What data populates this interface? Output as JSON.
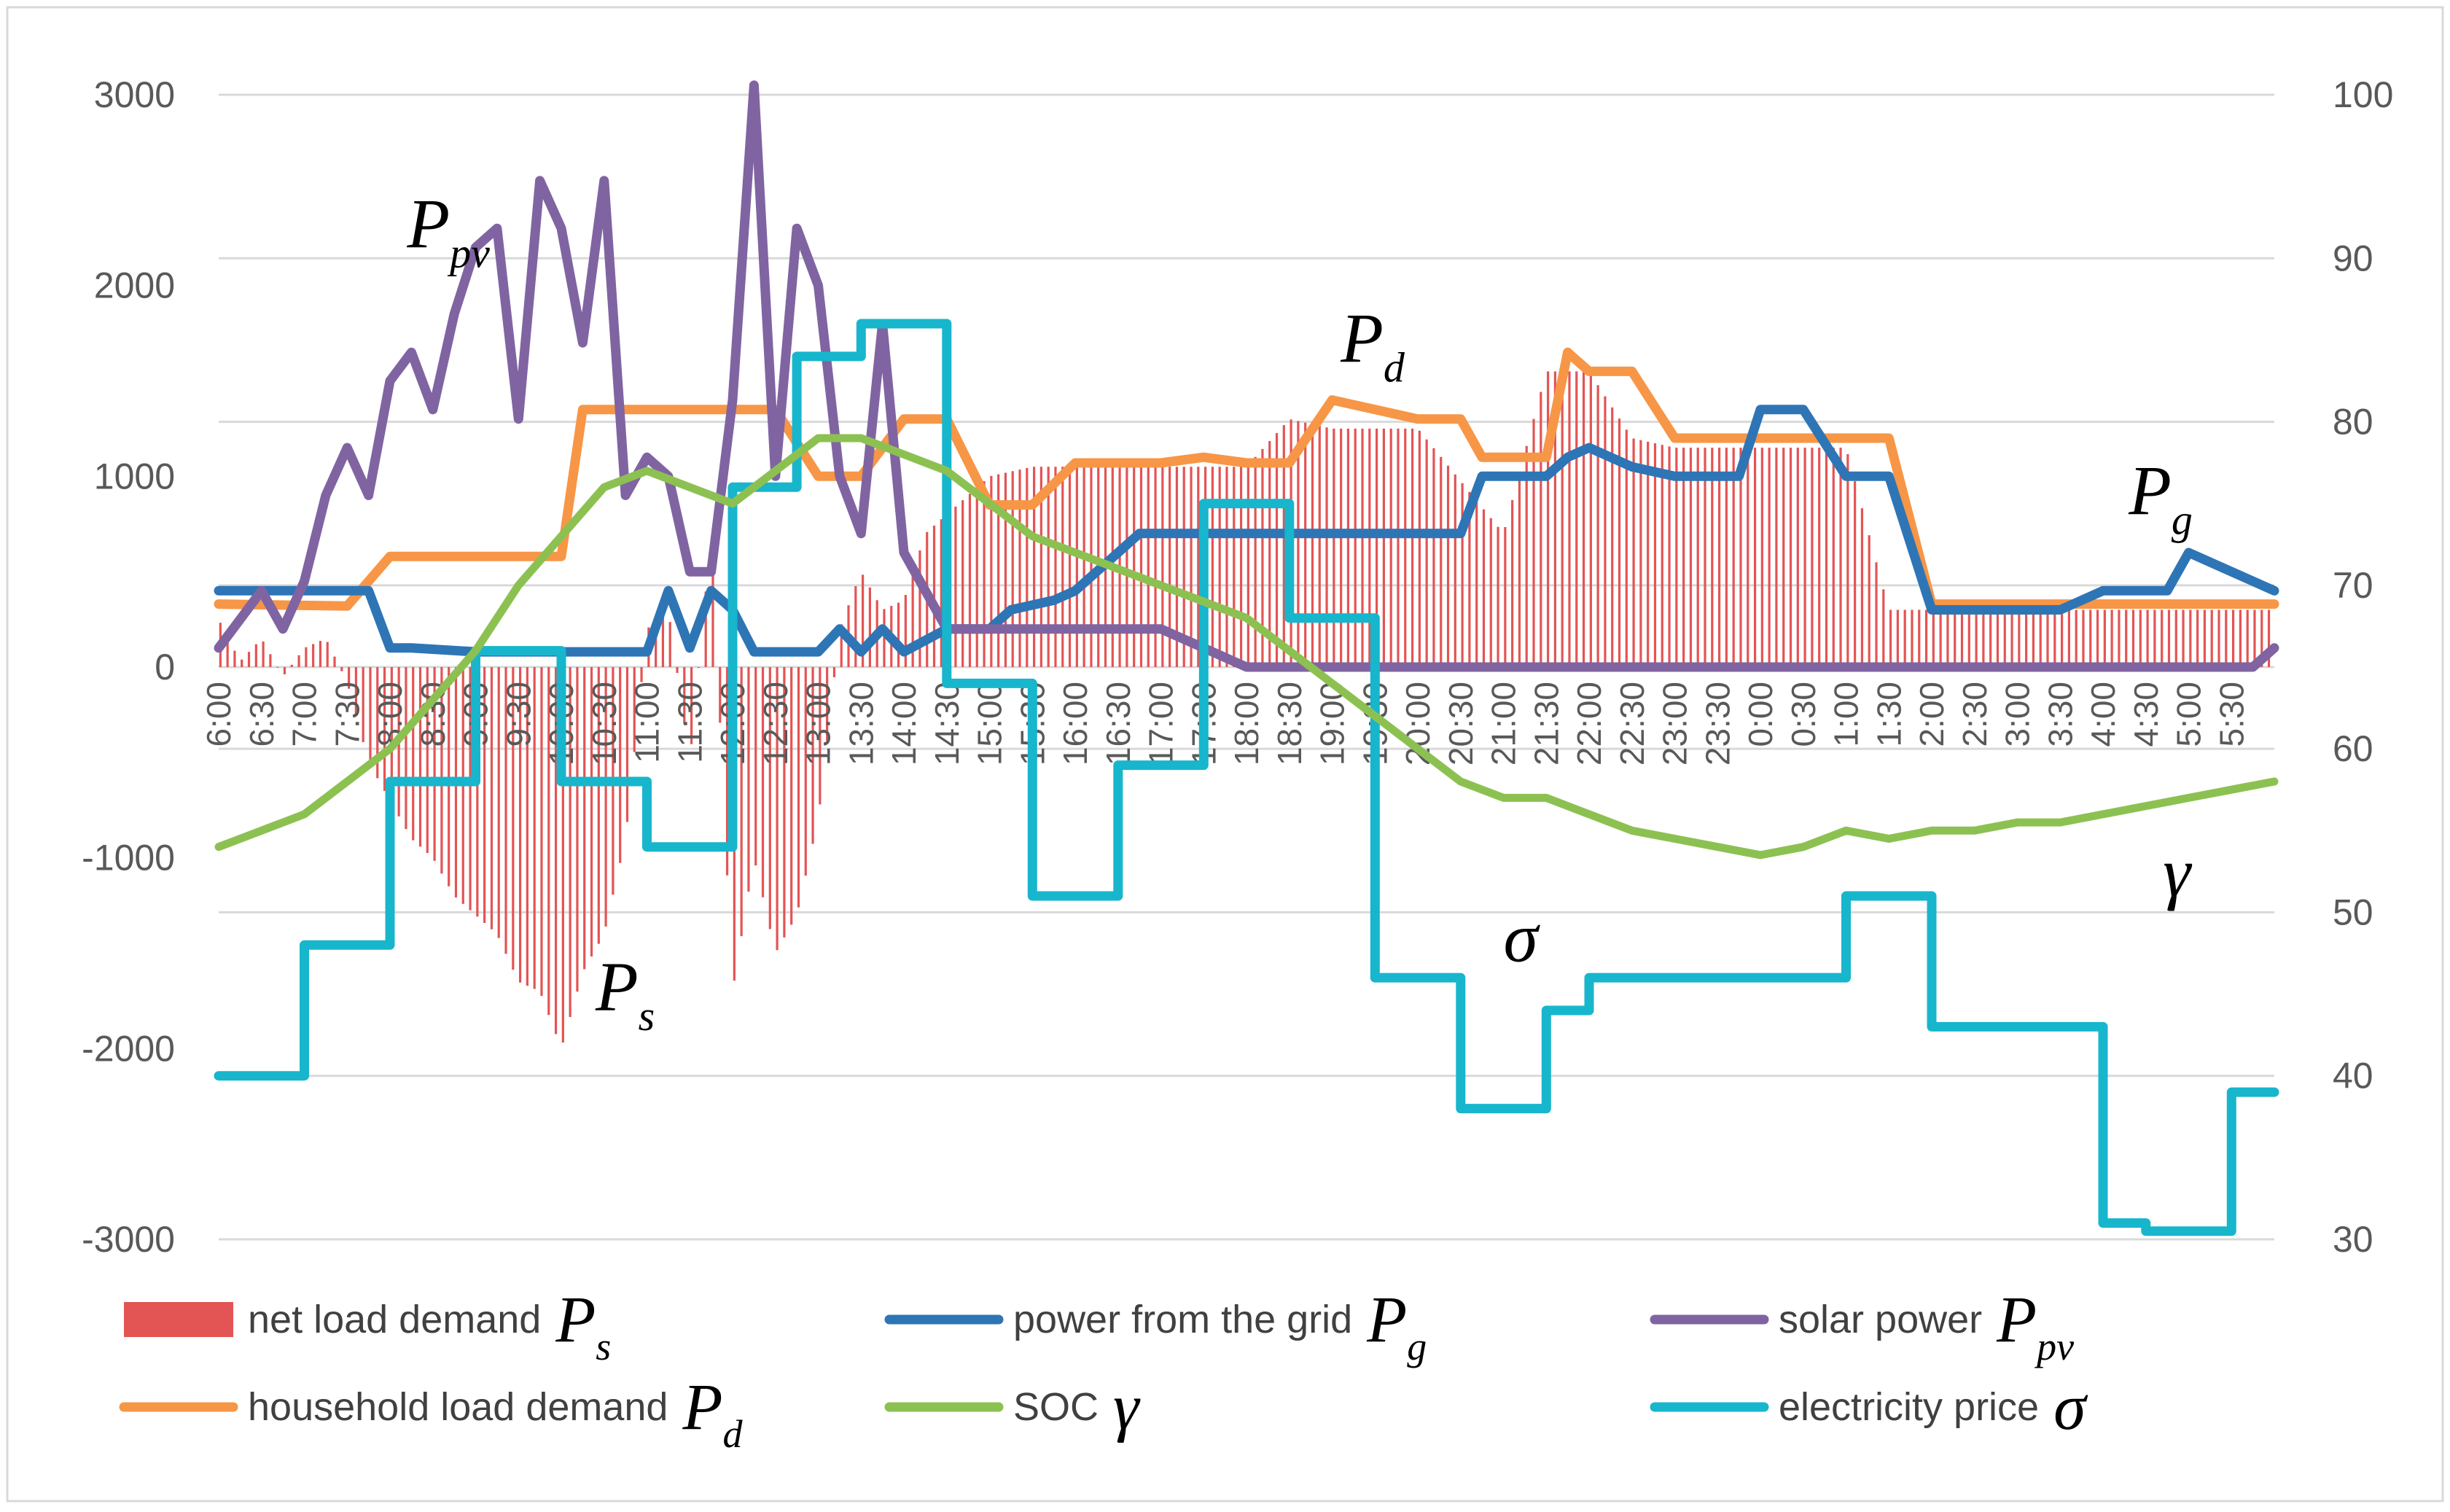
{
  "chart_data": {
    "type": "bar+line",
    "title": "",
    "xlabel": "",
    "ylabel_left": "",
    "ylabel_right": "",
    "y_left_range": [
      -3000,
      3000
    ],
    "y_left_ticks": [
      3000,
      2000,
      1000,
      0,
      -1000,
      -2000,
      -3000
    ],
    "y_right_range": [
      30,
      100
    ],
    "y_right_ticks": [
      100,
      90,
      80,
      70,
      60,
      50,
      40,
      30
    ],
    "grid": true,
    "x_labels": [
      "6:00",
      "6:30",
      "7:00",
      "7:30",
      "8:00",
      "8:30",
      "9:00",
      "9:30",
      "10:00",
      "10:30",
      "11:00",
      "11:30",
      "12:00",
      "12:30",
      "13:00",
      "13:30",
      "14:00",
      "14:30",
      "15:00",
      "15:30",
      "16:00",
      "16:30",
      "17:00",
      "17:30",
      "18:00",
      "18:30",
      "19:00",
      "19:30",
      "20:00",
      "20:30",
      "21:00",
      "21:30",
      "22:00",
      "22:30",
      "23:00",
      "23:30",
      "0:00",
      "0:30",
      "1:00",
      "1:30",
      "2:00",
      "2:30",
      "3:00",
      "3:30",
      "4:00",
      "4:30",
      "5:00",
      "5:30"
    ],
    "series": [
      {
        "key": "net",
        "name": "net load demand",
        "symbol": "P",
        "subscript": "s",
        "type": "bar",
        "axis": "left",
        "color": "#e35454",
        "hours": [
          6,
          6.25,
          6.5,
          6.75,
          7,
          7.25,
          7.5,
          7.75,
          8,
          8.25,
          8.5,
          8.75,
          9,
          9.25,
          9.5,
          9.75,
          10,
          10.25,
          10.5,
          10.75,
          11,
          11.25,
          11.5,
          11.75,
          12,
          12.25,
          12.5,
          12.75,
          13,
          13.25,
          13.5,
          13.75,
          14,
          14.25,
          14.5,
          14.75,
          15,
          15.5,
          16,
          17,
          17.5,
          18,
          18.5,
          19,
          20,
          21,
          21.5,
          22,
          22.5,
          23,
          0,
          1,
          1.5,
          2,
          3,
          4,
          5,
          5.75
        ],
        "values": [
          250,
          30,
          150,
          -50,
          100,
          150,
          -80,
          -500,
          -700,
          -900,
          -1000,
          -1200,
          -1300,
          -1400,
          -1650,
          -1700,
          -2000,
          -1600,
          -1400,
          -900,
          200,
          300,
          -500,
          700,
          -1700,
          -1000,
          -1500,
          -1300,
          -800,
          200,
          500,
          300,
          350,
          700,
          800,
          900,
          1000,
          1050,
          1050,
          1050,
          1050,
          1050,
          1300,
          1250,
          1250,
          700,
          1550,
          1550,
          1200,
          1150,
          1150,
          1150,
          300,
          300,
          300,
          300,
          300,
          300
        ]
      },
      {
        "key": "pg",
        "name": "power from the grid",
        "symbol": "P",
        "subscript": "g",
        "type": "line",
        "axis": "left",
        "color": "#2e75b6",
        "x": [
          6,
          7.75,
          8,
          8.25,
          9,
          9.75,
          10,
          10.25,
          10.5,
          11,
          11.25,
          11.5,
          11.75,
          12,
          12.25,
          12.5,
          13,
          13.25,
          13.5,
          13.75,
          14,
          14.5,
          15,
          15.25,
          15.75,
          16,
          16.5,
          16.75,
          17,
          18,
          19,
          20,
          20.5,
          20.75,
          21,
          21.5,
          21.75,
          22,
          22.5,
          23,
          23.75,
          24,
          24.5,
          25,
          25.5,
          26,
          26.75,
          27,
          27.5,
          28,
          28.75,
          29,
          29.5,
          30
        ],
        "y": [
          400,
          400,
          100,
          100,
          80,
          80,
          80,
          80,
          80,
          80,
          400,
          100,
          400,
          300,
          80,
          80,
          80,
          200,
          80,
          200,
          80,
          200,
          200,
          300,
          350,
          400,
          600,
          700,
          700,
          700,
          700,
          700,
          700,
          1000,
          1000,
          1000,
          1100,
          1150,
          1050,
          1000,
          1000,
          1350,
          1350,
          1000,
          1000,
          300,
          300,
          300,
          300,
          400,
          400,
          600,
          500,
          400
        ]
      },
      {
        "key": "pv",
        "name": "solar power",
        "symbol": "P",
        "subscript": "pv",
        "type": "line",
        "axis": "left",
        "color": "#8064a2",
        "x": [
          6,
          6.25,
          6.5,
          6.75,
          7,
          7.25,
          7.5,
          7.75,
          8,
          8.25,
          8.5,
          8.75,
          9,
          9.25,
          9.5,
          9.75,
          10,
          10.25,
          10.5,
          10.75,
          11,
          11.25,
          11.5,
          11.75,
          12,
          12.25,
          12.5,
          12.75,
          13,
          13.25,
          13.5,
          13.75,
          14,
          14.5,
          15,
          15.5,
          16,
          16.5,
          17,
          17.5,
          18,
          20,
          22,
          24,
          26,
          28,
          29.75,
          30
        ],
        "y": [
          100,
          250,
          400,
          200,
          450,
          900,
          1150,
          900,
          1500,
          1650,
          1350,
          1850,
          2200,
          2300,
          1300,
          2550,
          2300,
          1700,
          2550,
          900,
          1100,
          1000,
          500,
          500,
          1400,
          3050,
          1000,
          2300,
          2000,
          1000,
          700,
          1800,
          600,
          200,
          200,
          200,
          200,
          200,
          200,
          100,
          0,
          0,
          0,
          0,
          0,
          0,
          0,
          100
        ]
      },
      {
        "key": "pd",
        "name": "household load demand",
        "symbol": "P",
        "subscript": "d",
        "type": "line",
        "axis": "left",
        "color": "#f79646",
        "x": [
          6,
          7.5,
          8,
          9,
          10,
          10.25,
          11,
          12.5,
          13,
          13.5,
          14,
          14.5,
          15,
          15.5,
          16,
          17,
          17.5,
          18,
          18.5,
          19,
          20,
          20.5,
          20.75,
          21.5,
          21.75,
          22,
          22.5,
          23,
          24,
          25,
          25.5,
          26,
          30
        ],
        "y": [
          330,
          320,
          580,
          580,
          580,
          1350,
          1350,
          1350,
          1000,
          1000,
          1300,
          1300,
          850,
          850,
          1070,
          1070,
          1100,
          1070,
          1070,
          1400,
          1300,
          1300,
          1100,
          1100,
          1650,
          1550,
          1550,
          1200,
          1200,
          1200,
          1200,
          330,
          330
        ]
      },
      {
        "key": "soc",
        "name": "SOC",
        "symbol": "γ",
        "subscript": "",
        "type": "line",
        "axis": "right",
        "color": "#8cc152",
        "x": [
          6,
          6.5,
          7,
          7.5,
          8,
          8.5,
          9,
          9.5,
          10,
          10.5,
          11,
          11.5,
          12,
          12.5,
          13,
          13.5,
          14,
          14.5,
          15,
          15.5,
          16,
          16.5,
          17,
          17.5,
          18,
          18.5,
          19,
          19.5,
          20,
          20.5,
          21,
          21.5,
          22,
          22.5,
          23,
          23.5,
          24,
          24.5,
          25,
          25.5,
          26,
          26.5,
          27,
          27.5,
          28,
          28.5,
          29,
          29.5,
          30
        ],
        "y": [
          54,
          55,
          56,
          58,
          60,
          63,
          66,
          70,
          73,
          76,
          77,
          76,
          75,
          77,
          79,
          79,
          78,
          77,
          75,
          73,
          72,
          71,
          70,
          69,
          68,
          66,
          64,
          62,
          60,
          58,
          57,
          57,
          56,
          55,
          54.5,
          54,
          53.5,
          54,
          55,
          54.5,
          55,
          55,
          55.5,
          55.5,
          56,
          56.5,
          57,
          57.5,
          58
        ]
      },
      {
        "key": "price",
        "name": "electricity price",
        "symbol": "σ",
        "subscript": "",
        "type": "step",
        "axis": "right",
        "color": "#17b6cc",
        "x": [
          6,
          7,
          8,
          9,
          10,
          11,
          12,
          12.75,
          13.5,
          14.5,
          15.5,
          16.5,
          17.5,
          18.5,
          19.5,
          20.5,
          21.5,
          22,
          23,
          24,
          25,
          25.5,
          26,
          27,
          28,
          28.5,
          29,
          29.5,
          30
        ],
        "y": [
          40,
          48,
          58,
          66,
          58,
          54,
          76,
          84,
          86,
          64,
          51,
          59,
          75,
          68,
          46,
          38,
          44,
          46,
          46,
          46,
          51,
          51,
          43,
          43,
          31,
          30.5,
          30.5,
          39,
          39
        ]
      }
    ],
    "legend": {
      "position": "bottom",
      "rows": [
        [
          "net",
          "pg",
          "pv"
        ],
        [
          "pd",
          "soc",
          "price"
        ]
      ]
    },
    "annotations": [
      {
        "series": "pv",
        "x": 8.2,
        "axis": "left",
        "y": 2200
      },
      {
        "series": "pd",
        "x": 19.1,
        "axis": "left",
        "y": 1600
      },
      {
        "series": "pg",
        "x": 28.3,
        "axis": "left",
        "y": 800
      },
      {
        "series": "price",
        "x": 21,
        "axis": "right",
        "y": 47
      },
      {
        "series": "net",
        "x": 10.4,
        "axis": "left",
        "y": -1800
      },
      {
        "series": "soc",
        "x": 28.7,
        "axis": "right",
        "y": 51
      }
    ]
  }
}
